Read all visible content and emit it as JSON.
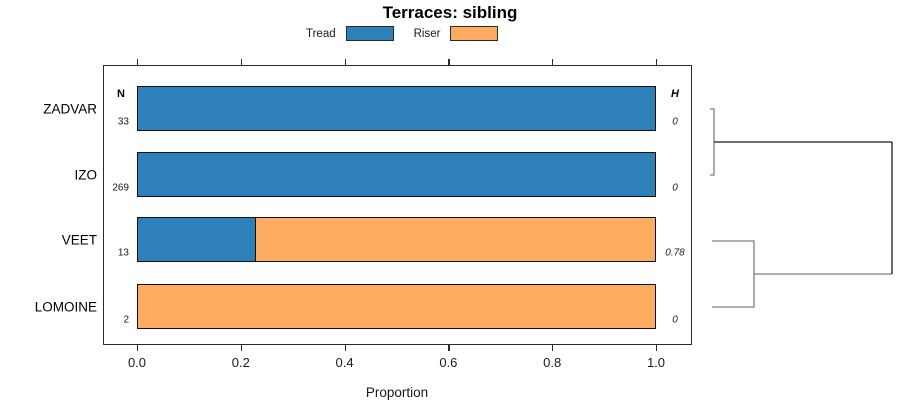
{
  "title": "Terraces: sibling",
  "legend": [
    {
      "label": "Tread",
      "color": "#2E80B9"
    },
    {
      "label": "Riser",
      "color": "#FCAB60"
    }
  ],
  "columns": {
    "n_header": "N",
    "h_header": "H"
  },
  "x_axis": {
    "label": "Proportion",
    "ticks": [
      "0.0",
      "0.2",
      "0.4",
      "0.6",
      "0.8",
      "1.0"
    ],
    "tick_values": [
      0,
      0.2,
      0.4,
      0.6,
      0.8,
      1.0
    ],
    "range": [
      0,
      1
    ]
  },
  "chart_data": {
    "type": "bar",
    "orientation": "horizontal",
    "stacked": true,
    "title": "Terraces: sibling",
    "xlabel": "Proportion",
    "xlim": [
      0,
      1
    ],
    "categories": [
      "ZADVAR",
      "IZO",
      "VEET",
      "LOMOINE"
    ],
    "series": [
      {
        "name": "Tread",
        "color": "#2E80B9",
        "values": [
          1.0,
          1.0,
          0.23,
          0.0
        ]
      },
      {
        "name": "Riser",
        "color": "#FCAB60",
        "values": [
          0.0,
          0.0,
          0.77,
          1.0
        ]
      }
    ],
    "n_values": [
      "33",
      "269",
      "13",
      "2"
    ],
    "h_values": [
      "0",
      "0",
      "0.78",
      "0"
    ],
    "legend_position": "top",
    "grid": false
  },
  "dendrogram": {
    "description": "cluster tree: ZADVAR+IZO merge near 0; VEET+LOMOINE merge; both join at root",
    "segments": [
      {
        "name": "link-zadvar-izo",
        "color": "#808080",
        "points": [
          [
            18,
            44
          ],
          [
            22,
            44
          ],
          [
            22,
            110
          ],
          [
            18,
            110
          ]
        ]
      },
      {
        "name": "connector-top-cluster",
        "color": "#1a1a1a",
        "points": [
          [
            22,
            77
          ],
          [
            200,
            77
          ]
        ]
      },
      {
        "name": "link-veet-lomoine",
        "color": "#808080",
        "points": [
          [
            20,
            176
          ],
          [
            62,
            176
          ],
          [
            62,
            242
          ],
          [
            20,
            242
          ]
        ]
      },
      {
        "name": "connector-bottom-cluster",
        "color": "#808080",
        "points": [
          [
            62,
            209
          ],
          [
            200,
            209
          ]
        ]
      },
      {
        "name": "root-link",
        "color": "#1a1a1a",
        "points": [
          [
            200,
            77
          ],
          [
            200,
            209
          ]
        ]
      }
    ]
  }
}
